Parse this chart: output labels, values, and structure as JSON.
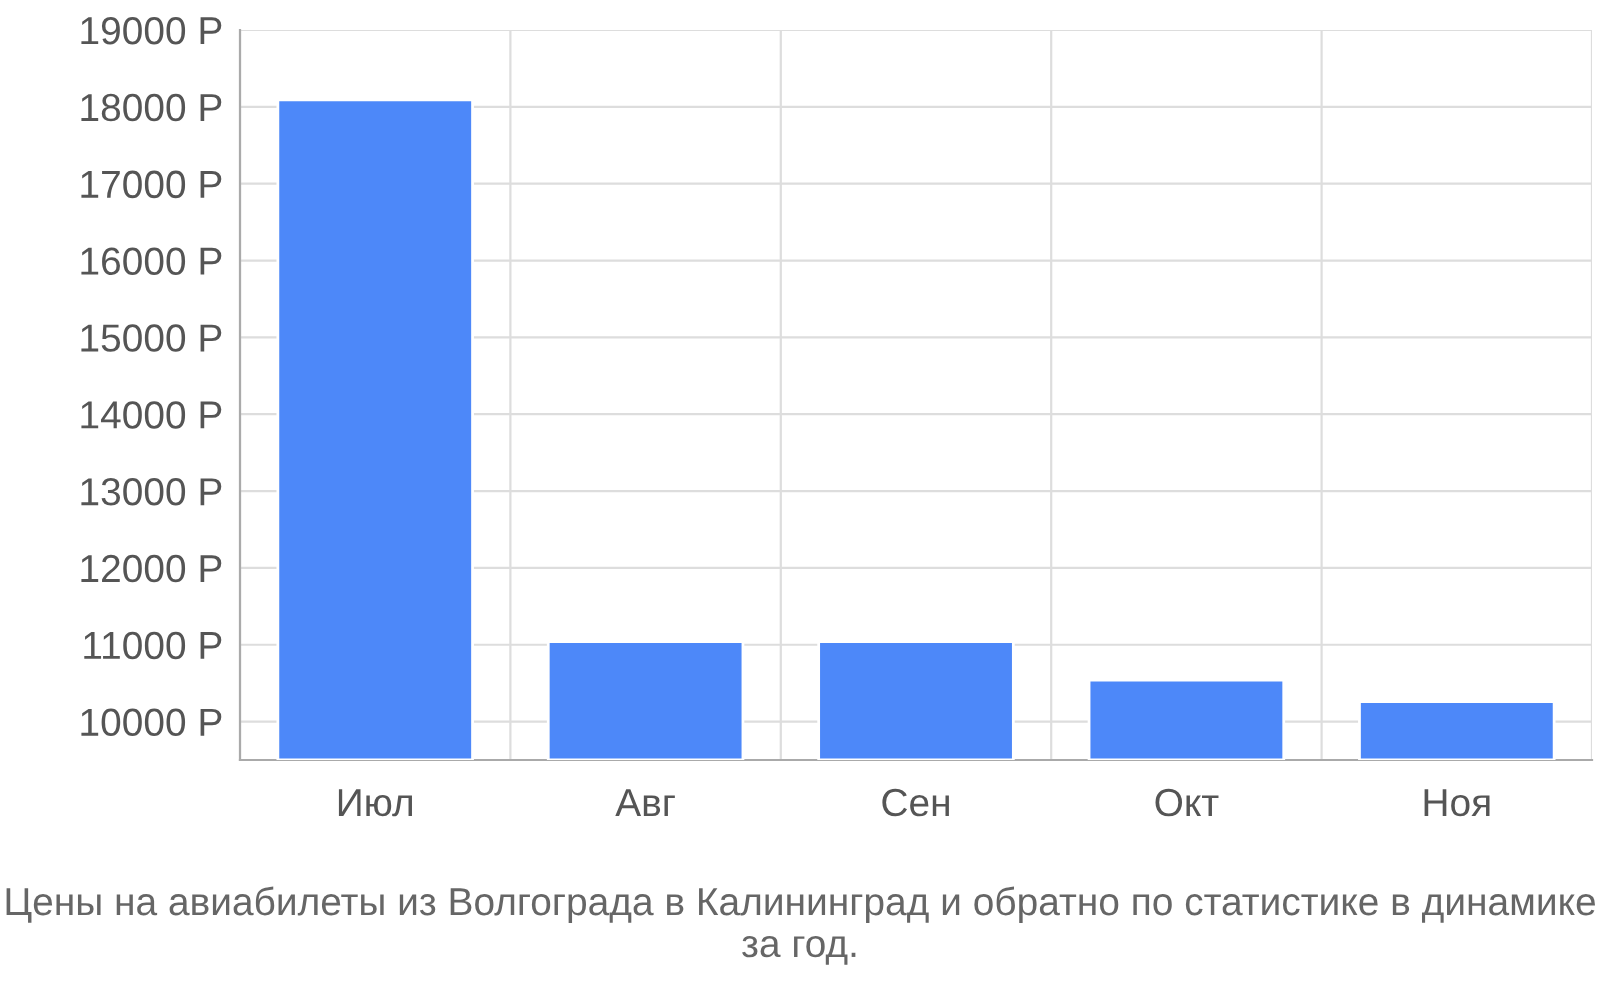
{
  "chart_data": {
    "type": "bar",
    "title": "Цены на авиабилеты из Волгограда в Калининград и обратно по статистике в динамике за год.",
    "categories": [
      "Июл",
      "Авг",
      "Сен",
      "Окт",
      "Ноя"
    ],
    "values": [
      18090,
      11040,
      11040,
      10540,
      10260
    ],
    "color": "#4d88f9",
    "ylim": [
      9500,
      19000
    ],
    "yticks": [
      {
        "value": 10000,
        "label": "10000 Р"
      },
      {
        "value": 11000,
        "label": "11000 Р"
      },
      {
        "value": 12000,
        "label": "12000 Р"
      },
      {
        "value": 13000,
        "label": "13000 Р"
      },
      {
        "value": 14000,
        "label": "14000 Р"
      },
      {
        "value": 15000,
        "label": "15000 Р"
      },
      {
        "value": 16000,
        "label": "16000 Р"
      },
      {
        "value": 17000,
        "label": "17000 Р"
      },
      {
        "value": 18000,
        "label": "18000 Р"
      },
      {
        "value": 19000,
        "label": "19000 Р"
      }
    ],
    "grid": true
  }
}
